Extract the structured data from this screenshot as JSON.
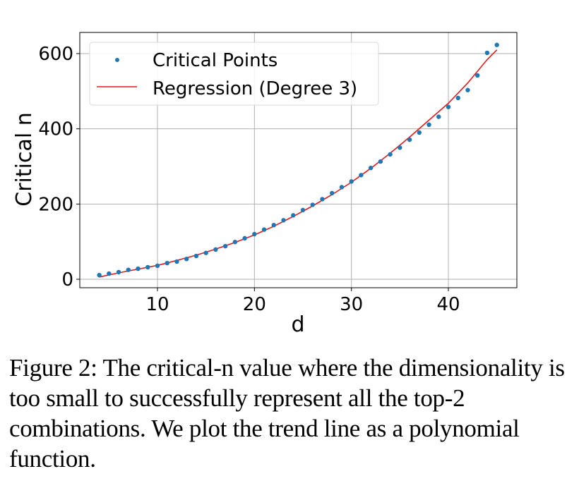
{
  "figure": {
    "caption": "Figure 2: The critical-n value where the dimensionality is too small to successfully represent all the top-2 combinations. We plot the trend line as a polynomial function."
  },
  "colors": {
    "points": "#1f77b4",
    "regression": "#e31a1c",
    "grid": "#b0b0b0",
    "axis": "#000000"
  },
  "chart_data": {
    "type": "scatter",
    "title": "",
    "xlabel": "d",
    "ylabel": "Critical n",
    "xlim": [
      2,
      47
    ],
    "ylim": [
      -20,
      660
    ],
    "xticks": [
      10,
      20,
      30,
      40
    ],
    "yticks": [
      0,
      200,
      400,
      600
    ],
    "grid": true,
    "legend_position": "upper left",
    "legend": [
      "Critical Points",
      "Regression (Degree 3)"
    ],
    "series": [
      {
        "name": "Critical Points",
        "kind": "scatter",
        "x": [
          4,
          5,
          6,
          7,
          8,
          9,
          10,
          11,
          12,
          13,
          14,
          15,
          16,
          17,
          18,
          19,
          20,
          21,
          22,
          23,
          24,
          25,
          26,
          27,
          28,
          29,
          30,
          31,
          32,
          33,
          34,
          35,
          36,
          37,
          38,
          39,
          40,
          41,
          42,
          43,
          44,
          45
        ],
        "y": [
          11,
          15,
          19,
          25,
          28,
          32,
          36,
          43,
          47,
          54,
          62,
          70,
          79,
          88,
          99,
          109,
          120,
          132,
          144,
          157,
          170,
          184,
          198,
          213,
          229,
          245,
          260,
          277,
          296,
          313,
          332,
          350,
          371,
          390,
          411,
          432,
          458,
          482,
          503,
          542,
          602,
          623
        ]
      },
      {
        "name": "Regression (Degree 3)",
        "kind": "line",
        "x": [
          4,
          6,
          8,
          10,
          12,
          14,
          16,
          18,
          20,
          22,
          24,
          26,
          28,
          30,
          32,
          34,
          36,
          38,
          40,
          42,
          44,
          45
        ],
        "y": [
          6,
          17,
          27,
          37,
          50,
          64,
          80,
          98,
          118,
          141,
          167,
          195,
          225,
          258,
          295,
          335,
          378,
          423,
          468,
          522,
          584,
          610
        ]
      }
    ]
  }
}
